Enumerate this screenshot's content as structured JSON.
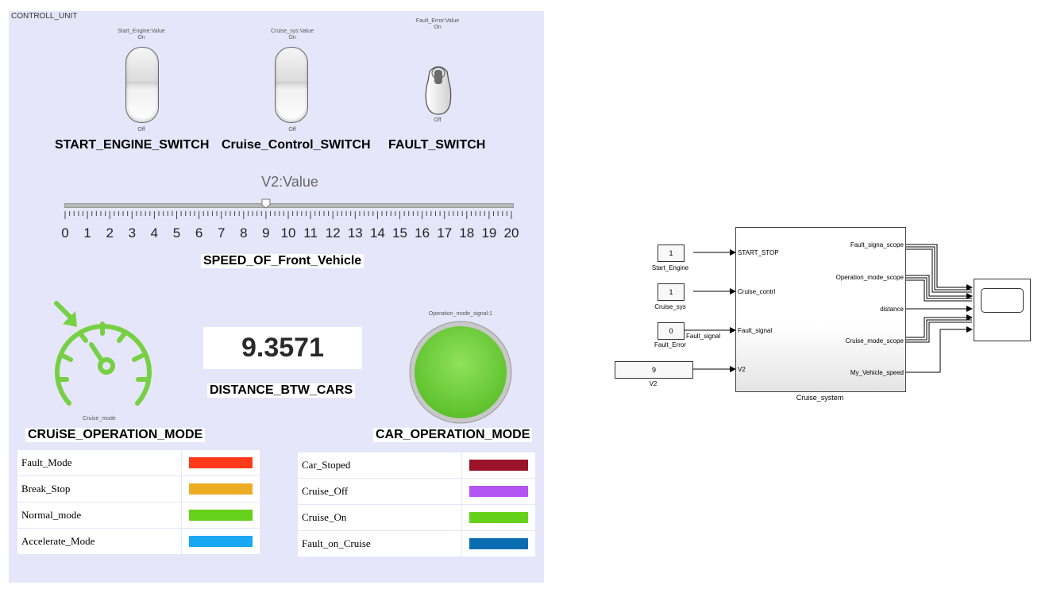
{
  "panel": {
    "title": "CONTROLL_UNIT"
  },
  "switches": {
    "start": {
      "top_caption": "Start_Engine:Value",
      "on_label": "On",
      "off_label": "Off",
      "name": "START_ENGINE_SWITCH"
    },
    "cruise": {
      "top_caption": "Cruise_sys:Value",
      "on_label": "On",
      "off_label": "Off",
      "name": "Cruise_Control_SWITCH"
    },
    "fault": {
      "top_caption": "Fault_Error:Value",
      "on_label": "On",
      "off_label": "Off",
      "name": "FAULT_SWITCH"
    }
  },
  "slider": {
    "title": "V2:Value",
    "value": 9,
    "min": 0,
    "max": 20,
    "ticks": [
      "0",
      "1",
      "2",
      "3",
      "4",
      "5",
      "6",
      "7",
      "8",
      "9",
      "10",
      "11",
      "12",
      "13",
      "14",
      "15",
      "16",
      "17",
      "18",
      "19",
      "20"
    ],
    "label": "SPEED_OF_Front_Vehicle"
  },
  "gauge": {
    "caption": "Cruise_mode",
    "label": "CRUiSE_OPERATION_MODE",
    "color": "#77d044"
  },
  "distance": {
    "value": "9.3571",
    "label": "DISTANCE_BTW_CARS"
  },
  "lamp": {
    "caption": "Operation_mode_signal:1",
    "label": "CAR_OPERATION_MODE",
    "color": "#6fd13b"
  },
  "cruise_legend": [
    {
      "name": "Fault_Mode",
      "color": "#ff3a1a"
    },
    {
      "name": "Break_Stop",
      "color": "#edac26"
    },
    {
      "name": "Normal_mode",
      "color": "#66d11a"
    },
    {
      "name": "Accelerate_Mode",
      "color": "#1aa7f3"
    }
  ],
  "car_legend": [
    {
      "name": "Car_Stoped",
      "color": "#9a1328"
    },
    {
      "name": "Cruise_Off",
      "color": "#b255f3"
    },
    {
      "name": "Cruise_On",
      "color": "#66d11a"
    },
    {
      "name": "Fault_on_Cruise",
      "color": "#0a6cb1"
    }
  ],
  "diagram": {
    "constants": [
      {
        "value": "1",
        "name": "Start_Engine"
      },
      {
        "value": "1",
        "name": "Cruise_sys"
      },
      {
        "value": "0",
        "name": "Fault_Error"
      }
    ],
    "v2_value": "9",
    "v2_name": "V2",
    "fault_signal_wire": "Fault_signal",
    "subsystem": {
      "name": "Cruise_system",
      "inputs": [
        "START_STOP",
        "Cruise_contrl",
        "Fault_signal",
        "V2"
      ],
      "outputs": [
        "Fault_signa_scope",
        "Operation_mode_scope",
        "distance",
        "Cruise_mode_scope",
        "My_Vehicle_speed"
      ]
    }
  }
}
